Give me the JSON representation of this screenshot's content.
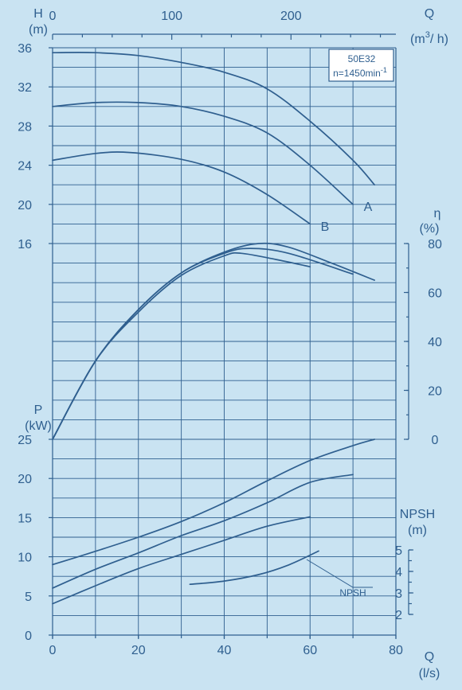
{
  "chart_data": {
    "type": "line",
    "model": "50E32",
    "speed_label": "n=1450min",
    "speed_exp": "-1",
    "x": {
      "label": "Q",
      "unit": "(l/s)",
      "range": [
        0,
        80
      ],
      "ticks": [
        0,
        20,
        40,
        60,
        80
      ]
    },
    "x_top": {
      "label": "Q",
      "unit_main": "(m",
      "unit_sup": "3",
      "unit_tail": "/ h)",
      "ticks": [
        0,
        100,
        200
      ],
      "factor": 3.6
    },
    "head": {
      "label": "H",
      "unit": "(m)",
      "range": [
        16,
        36
      ],
      "ticks": [
        16,
        20,
        24,
        28,
        32,
        36
      ],
      "series": [
        {
          "name": "",
          "points": [
            [
              0,
              35.5
            ],
            [
              10,
              35.5
            ],
            [
              20,
              35.2
            ],
            [
              30,
              34.5
            ],
            [
              40,
              33.5
            ],
            [
              50,
              31.8
            ],
            [
              60,
              28.5
            ],
            [
              70,
              24.5
            ],
            [
              75,
              22
            ]
          ]
        },
        {
          "name": "A",
          "points": [
            [
              0,
              30
            ],
            [
              10,
              30.4
            ],
            [
              20,
              30.4
            ],
            [
              30,
              30
            ],
            [
              40,
              29
            ],
            [
              50,
              27.3
            ],
            [
              60,
              24
            ],
            [
              70,
              20
            ]
          ]
        },
        {
          "name": "B",
          "points": [
            [
              0,
              24.5
            ],
            [
              10,
              25.2
            ],
            [
              18,
              25.3
            ],
            [
              30,
              24.6
            ],
            [
              40,
              23.3
            ],
            [
              50,
              21
            ],
            [
              60,
              18
            ]
          ]
        }
      ]
    },
    "efficiency": {
      "label": "η",
      "unit": "(%)",
      "range": [
        0,
        80
      ],
      "ticks": [
        0,
        20,
        40,
        60,
        80
      ],
      "series": [
        {
          "name": "",
          "points": [
            [
              0,
              0
            ],
            [
              10,
              32
            ],
            [
              20,
              53
            ],
            [
              30,
              68
            ],
            [
              40,
              76.5
            ],
            [
              48,
              80
            ],
            [
              55,
              78.5
            ],
            [
              65,
              72
            ],
            [
              75,
              65
            ]
          ]
        },
        {
          "name": "A",
          "points": [
            [
              0,
              0
            ],
            [
              10,
              32
            ],
            [
              20,
              53
            ],
            [
              30,
              68
            ],
            [
              40,
              76
            ],
            [
              46,
              78
            ],
            [
              55,
              76
            ],
            [
              70,
              67.5
            ]
          ]
        },
        {
          "name": "B",
          "points": [
            [
              0,
              0
            ],
            [
              10,
              32
            ],
            [
              20,
              52
            ],
            [
              30,
              67
            ],
            [
              40,
              75
            ],
            [
              44,
              76
            ],
            [
              52,
              73.5
            ],
            [
              60,
              70.5
            ]
          ]
        }
      ]
    },
    "power": {
      "label": "P",
      "unit": "(kW)",
      "range": [
        0,
        25
      ],
      "ticks": [
        0,
        5,
        10,
        15,
        20,
        25
      ],
      "series": [
        {
          "name": "",
          "points": [
            [
              0,
              9
            ],
            [
              10,
              10.7
            ],
            [
              20,
              12.5
            ],
            [
              30,
              14.5
            ],
            [
              40,
              16.9
            ],
            [
              50,
              19.7
            ],
            [
              60,
              22.3
            ],
            [
              70,
              24.2
            ],
            [
              75,
              25
            ]
          ]
        },
        {
          "name": "A",
          "points": [
            [
              0,
              6
            ],
            [
              10,
              8.4
            ],
            [
              20,
              10.5
            ],
            [
              30,
              12.7
            ],
            [
              40,
              14.6
            ],
            [
              50,
              16.9
            ],
            [
              60,
              19.5
            ],
            [
              70,
              20.5
            ]
          ]
        },
        {
          "name": "B",
          "points": [
            [
              0,
              4
            ],
            [
              10,
              6.3
            ],
            [
              20,
              8.5
            ],
            [
              30,
              10.3
            ],
            [
              40,
              12.1
            ],
            [
              50,
              13.9
            ],
            [
              60,
              15.1
            ]
          ]
        }
      ]
    },
    "npsh": {
      "label": "NPSH",
      "unit": "(m)",
      "range": [
        2,
        5
      ],
      "ticks": [
        2,
        3,
        4,
        5
      ],
      "series": [
        {
          "name": "NPSH",
          "points": [
            [
              32,
              3.4
            ],
            [
              40,
              3.55
            ],
            [
              48,
              3.85
            ],
            [
              55,
              4.3
            ],
            [
              62,
              4.95
            ]
          ]
        }
      ]
    },
    "curve_labels": {
      "A": "A",
      "B": "B",
      "npsh": "NPSH"
    }
  }
}
